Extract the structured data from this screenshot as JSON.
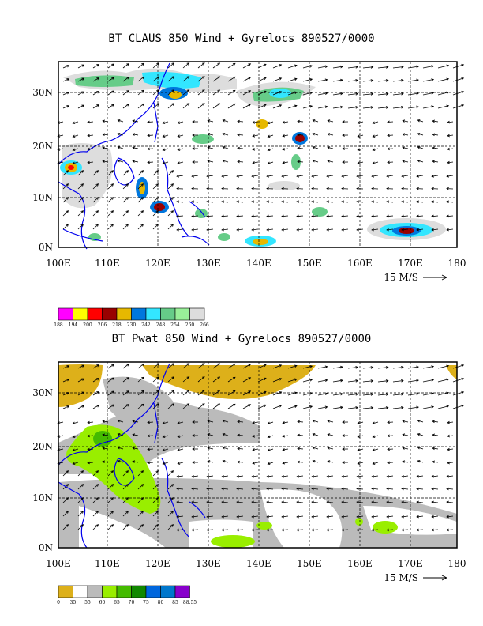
{
  "panels": [
    {
      "title": "BT CLAUS 850 Wind + Gyrelocs 890527/0000",
      "field": "CLAUS brightness temperature",
      "x_ticks": [
        "100E",
        "110E",
        "120E",
        "130E",
        "140E",
        "150E",
        "160E",
        "170E",
        "180"
      ],
      "y_ticks": [
        "0N",
        "10N",
        "20N",
        "30N"
      ],
      "reference_vector": "15 M/S",
      "legend_colors": [
        "#ff00ff",
        "#ffff00",
        "#ff0000",
        "#990000",
        "#e6b800",
        "#0077dd",
        "#33e6ff",
        "#66cc88",
        "#99f099",
        "#dddddd"
      ],
      "legend_labels": [
        "188",
        "194",
        "200",
        "206",
        "218",
        "230",
        "242",
        "248",
        "254",
        "260",
        "266"
      ]
    },
    {
      "title": "BT Pwat 850 Wind + Gyrelocs 890527/0000",
      "field": "precipitable water",
      "x_ticks": [
        "100E",
        "110E",
        "120E",
        "130E",
        "140E",
        "150E",
        "160E",
        "170E",
        "180"
      ],
      "y_ticks": [
        "0N",
        "10N",
        "20N",
        "30N"
      ],
      "reference_vector": "15 M/S",
      "legend_colors": [
        "#ddb01a",
        "#ffffff",
        "#bbbbbb",
        "#99ee00",
        "#44bb00",
        "#118800",
        "#0066dd",
        "#0077cc",
        "#8800cc"
      ],
      "legend_labels": [
        "0",
        "35",
        "55",
        "60",
        "65",
        "70",
        "75",
        "80",
        "85",
        "88.55"
      ]
    }
  ]
}
